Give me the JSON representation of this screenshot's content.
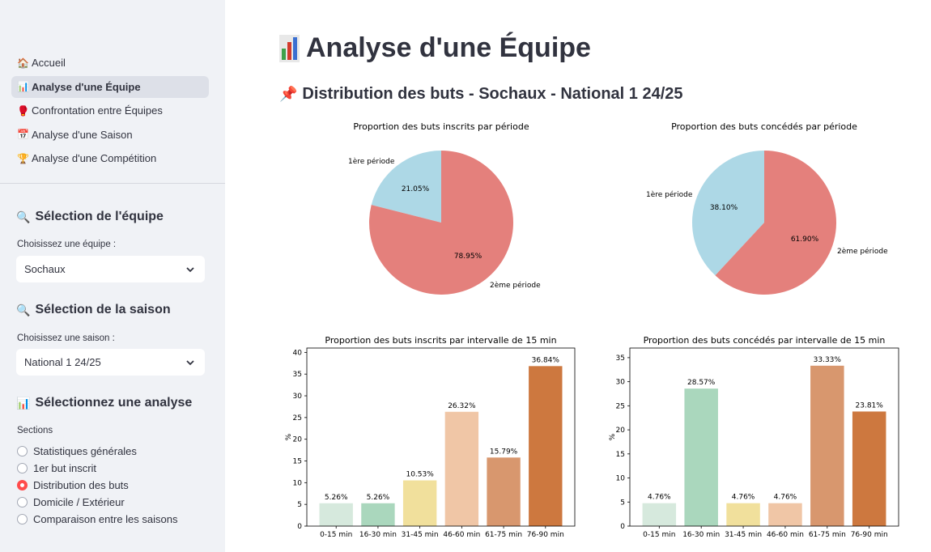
{
  "sidebar": {
    "nav": [
      {
        "label": "Accueil",
        "icon": "house-icon",
        "active": false
      },
      {
        "label": "Analyse d'une Équipe",
        "icon": "bar-chart-icon",
        "active": true
      },
      {
        "label": "Confrontation entre Équipes",
        "icon": "boxing-glove-icon",
        "active": false
      },
      {
        "label": "Analyse d'une Saison",
        "icon": "calendar-icon",
        "active": false
      },
      {
        "label": "Analyse d'une Compétition",
        "icon": "trophy-icon",
        "active": false
      }
    ],
    "team_header": "Sélection de l'équipe",
    "team_label": "Choisissez une équipe :",
    "team_value": "Sochaux",
    "season_header": "Sélection de la saison",
    "season_label": "Choisissez une saison :",
    "season_value": "National 1 24/25",
    "analysis_header": "Sélectionnez une analyse",
    "sections_label": "Sections",
    "sections": [
      {
        "label": "Statistiques générales",
        "selected": false
      },
      {
        "label": "1er but inscrit",
        "selected": false
      },
      {
        "label": "Distribution des buts",
        "selected": true
      },
      {
        "label": "Domicile / Extérieur",
        "selected": false
      },
      {
        "label": "Comparaison entre les saisons",
        "selected": false
      }
    ]
  },
  "main": {
    "title": "Analyse d'une Équipe",
    "subtitle": "Distribution des buts - Sochaux - National 1 24/25"
  },
  "colors": {
    "accent": "#ff4b4b",
    "pie_first": "#add8e6",
    "pie_second": "#e4807c"
  },
  "chart_data": [
    {
      "type": "pie",
      "title": "Proportion des buts inscrits par période",
      "labels": [
        "1ère période",
        "2ème période"
      ],
      "values": [
        21.05,
        78.95
      ],
      "value_labels": [
        "21.05%",
        "78.95%"
      ]
    },
    {
      "type": "pie",
      "title": "Proportion des buts concédés par période",
      "labels": [
        "1ère période",
        "2ème période"
      ],
      "values": [
        38.1,
        61.9
      ],
      "value_labels": [
        "38.10%",
        "61.90%"
      ]
    },
    {
      "type": "bar",
      "title": "Proportion des buts inscrits par intervalle de 15 min",
      "ylabel": "%",
      "categories": [
        "0-15 min",
        "16-30 min",
        "31-45 min",
        "46-60 min",
        "61-75 min",
        "76-90 min"
      ],
      "values": [
        5.26,
        5.26,
        10.53,
        26.32,
        15.79,
        36.84
      ],
      "value_labels": [
        "5.26%",
        "5.26%",
        "10.53%",
        "26.32%",
        "15.79%",
        "36.84%"
      ],
      "ylim": [
        0,
        41
      ],
      "yticks": [
        0,
        5,
        10,
        15,
        20,
        25,
        30,
        35,
        40
      ],
      "colors": [
        "#d6e9dd",
        "#aad7bd",
        "#f1e09c",
        "#f0c6a6",
        "#d8976e",
        "#cd783f"
      ]
    },
    {
      "type": "bar",
      "title": "Proportion des buts concédés par intervalle de 15 min",
      "ylabel": "%",
      "categories": [
        "0-15 min",
        "16-30 min",
        "31-45 min",
        "46-60 min",
        "61-75 min",
        "76-90 min"
      ],
      "values": [
        4.76,
        28.57,
        4.76,
        4.76,
        33.33,
        23.81
      ],
      "value_labels": [
        "4.76%",
        "28.57%",
        "4.76%",
        "4.76%",
        "33.33%",
        "23.81%"
      ],
      "ylim": [
        0,
        37
      ],
      "yticks": [
        0,
        5,
        10,
        15,
        20,
        25,
        30,
        35
      ],
      "colors": [
        "#d6e9dd",
        "#aad7bd",
        "#f1e09c",
        "#f0c6a6",
        "#d8976e",
        "#cd783f"
      ]
    }
  ]
}
